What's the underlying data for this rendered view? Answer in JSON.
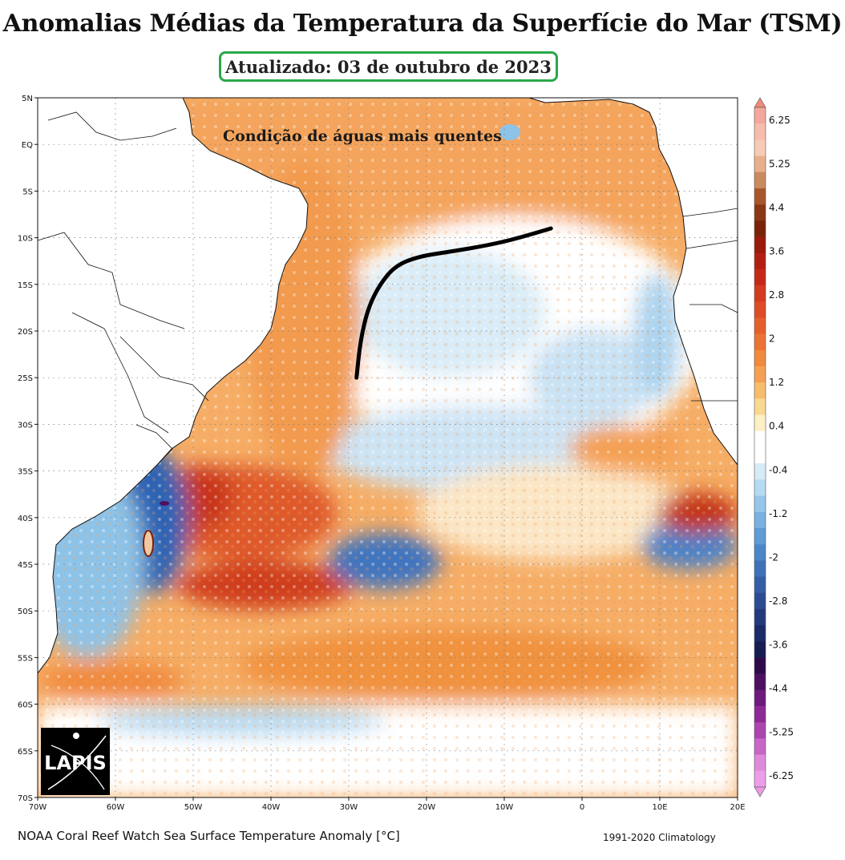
{
  "title": "Anomalias Médias da Temperatura da Superfície do Mar (TSM)",
  "updated": "Atualizado: 03 de outubro de 2023",
  "map": {
    "annotation": "Condição de águas mais quentes",
    "lat_labels": [
      "5N",
      "EQ",
      "5S",
      "10S",
      "15S",
      "20S",
      "25S",
      "30S",
      "35S",
      "40S",
      "45S",
      "50S",
      "55S",
      "60S",
      "65S",
      "70S"
    ],
    "lon_labels": [
      "70W",
      "60W",
      "50W",
      "40W",
      "30W",
      "20W",
      "10W",
      "0",
      "10E",
      "20E"
    ],
    "extent": {
      "lon_min": -70,
      "lon_max": 20,
      "lat_min": -70,
      "lat_max": 5
    },
    "logo_text": "LAPIS",
    "warm_boundary_line": [
      [
        -29,
        -25
      ],
      [
        -28.5,
        -21
      ],
      [
        -27.5,
        -17.5
      ],
      [
        -26,
        -15
      ],
      [
        -24,
        -13
      ],
      [
        -21,
        -12
      ],
      [
        -17,
        -11.5
      ],
      [
        -12,
        -10.8
      ],
      [
        -8,
        -10
      ],
      [
        -4,
        -9
      ]
    ]
  },
  "colorbar": {
    "labels": [
      "6.25",
      "5.25",
      "4.4",
      "3.6",
      "2.8",
      "2",
      "1.2",
      "0.4",
      "-0.4",
      "-1.2",
      "-2",
      "-2.8",
      "-3.6",
      "-4.4",
      "-5.25",
      "-6.25"
    ],
    "colors": [
      "#f4a79a",
      "#f7bdab",
      "#f8cbb4",
      "#e8b08a",
      "#c98a5e",
      "#a7572b",
      "#8a3713",
      "#7a2308",
      "#9b1a0c",
      "#b21f12",
      "#c62818",
      "#d33a20",
      "#de4c26",
      "#e5602c",
      "#eb7432",
      "#f08a3c",
      "#f4a052",
      "#f8bd6c",
      "#fbd890",
      "#fdf0c4",
      "#ffffff",
      "#ffffff",
      "#d7ebf7",
      "#b6daf1",
      "#96c6ea",
      "#79b1e0",
      "#5f9bd5",
      "#4b86c8",
      "#3f71b8",
      "#345ea6",
      "#2b4b92",
      "#233a7d",
      "#1c2a68",
      "#171c52",
      "#2d0b4a",
      "#4d1061",
      "#6e1a7c",
      "#8e2a96",
      "#ad45b0",
      "#c866c7",
      "#de8adb",
      "#ec9ee8"
    ],
    "top_color": "#f08a7a",
    "bottom_color": "#e89ae2"
  },
  "source": "NOAA Coral Reef Watch Sea Surface Temperature Anomaly [°C]",
  "climatology": "1991-2020 Climatology"
}
